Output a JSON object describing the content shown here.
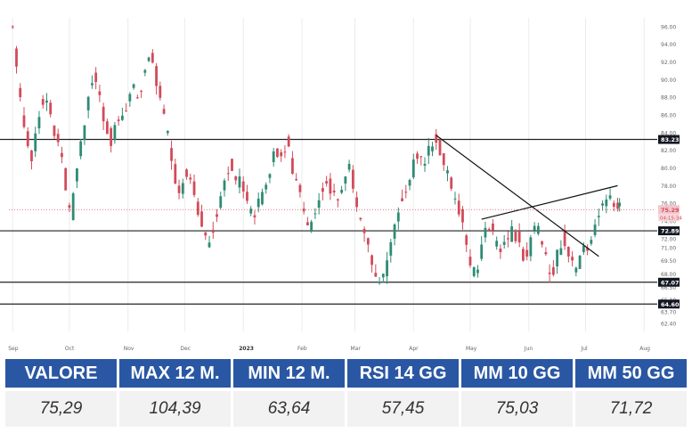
{
  "chart_data": {
    "type": "candlestick",
    "ylim": [
      61.5,
      97
    ],
    "y_ticks": [
      "96.00",
      "94.00",
      "92.00",
      "90.00",
      "88.00",
      "86.00",
      "84.00",
      "82.00",
      "80.00",
      "78.00",
      "76.00",
      "74.00",
      "72.00",
      "71.00",
      "69.50",
      "68.00",
      "66.50",
      "65.10",
      "63.70",
      "62.40"
    ],
    "x_ticks": [
      {
        "label": "Sep",
        "day": 0
      },
      {
        "label": "Oct",
        "day": 30
      },
      {
        "label": "Nov",
        "day": 61
      },
      {
        "label": "Dec",
        "day": 91
      },
      {
        "label": "2023",
        "day": 122
      },
      {
        "label": "Feb",
        "day": 153
      },
      {
        "label": "Mar",
        "day": 181
      },
      {
        "label": "Apr",
        "day": 212
      },
      {
        "label": "May",
        "day": 242
      },
      {
        "label": "Jun",
        "day": 273
      },
      {
        "label": "Jul",
        "day": 303
      },
      {
        "label": "Aug",
        "day": 334
      }
    ],
    "x_range": [
      -2,
      340
    ],
    "horizontal_levels": [
      {
        "value": 83.23,
        "label": "83.23"
      },
      {
        "value": 72.89,
        "label": "72.89"
      },
      {
        "value": 67.07,
        "label": "67.07"
      },
      {
        "value": 64.6,
        "label": "64.60"
      }
    ],
    "current_price": {
      "value": 75.29,
      "label": "75.29",
      "sublabel": "04:15:34"
    },
    "trendlines": [
      {
        "from": [
          224,
          83.7
        ],
        "to": [
          310,
          70.0
        ]
      },
      {
        "from": [
          248,
          74.2
        ],
        "to": [
          320,
          78.0
        ]
      }
    ],
    "close_series": [
      {
        "day": 0,
        "close": 96.0
      },
      {
        "day": 3,
        "close": 89.0
      },
      {
        "day": 7,
        "close": 84.0
      },
      {
        "day": 10,
        "close": 81.0
      },
      {
        "day": 14,
        "close": 86.5
      },
      {
        "day": 18,
        "close": 88.0
      },
      {
        "day": 22,
        "close": 84.0
      },
      {
        "day": 26,
        "close": 82.0
      },
      {
        "day": 29,
        "close": 76.0
      },
      {
        "day": 31,
        "close": 75.0
      },
      {
        "day": 34,
        "close": 80.0
      },
      {
        "day": 37,
        "close": 84.0
      },
      {
        "day": 40,
        "close": 88.0
      },
      {
        "day": 43,
        "close": 90.5
      },
      {
        "day": 46,
        "close": 88.0
      },
      {
        "day": 49,
        "close": 85.0
      },
      {
        "day": 52,
        "close": 83.0
      },
      {
        "day": 55,
        "close": 85.0
      },
      {
        "day": 58,
        "close": 86.0
      },
      {
        "day": 61,
        "close": 87.5
      },
      {
        "day": 64,
        "close": 89.0
      },
      {
        "day": 67,
        "close": 88.0
      },
      {
        "day": 70,
        "close": 91.0
      },
      {
        "day": 73,
        "close": 93.0
      },
      {
        "day": 76,
        "close": 90.0
      },
      {
        "day": 79,
        "close": 87.0
      },
      {
        "day": 82,
        "close": 84.0
      },
      {
        "day": 85,
        "close": 80.0
      },
      {
        "day": 88,
        "close": 77.0
      },
      {
        "day": 91,
        "close": 80.0
      },
      {
        "day": 94,
        "close": 79.0
      },
      {
        "day": 97,
        "close": 76.0
      },
      {
        "day": 100,
        "close": 74.0
      },
      {
        "day": 103,
        "close": 71.0
      },
      {
        "day": 106,
        "close": 73.0
      },
      {
        "day": 109,
        "close": 76.0
      },
      {
        "day": 112,
        "close": 79.0
      },
      {
        "day": 115,
        "close": 80.5
      },
      {
        "day": 118,
        "close": 79.0
      },
      {
        "day": 121,
        "close": 78.0
      },
      {
        "day": 124,
        "close": 76.0
      },
      {
        "day": 127,
        "close": 74.0
      },
      {
        "day": 130,
        "close": 76.0
      },
      {
        "day": 133,
        "close": 78.0
      },
      {
        "day": 136,
        "close": 80.0
      },
      {
        "day": 139,
        "close": 82.0
      },
      {
        "day": 142,
        "close": 81.0
      },
      {
        "day": 145,
        "close": 82.5
      },
      {
        "day": 148,
        "close": 80.0
      },
      {
        "day": 151,
        "close": 78.0
      },
      {
        "day": 154,
        "close": 75.0
      },
      {
        "day": 157,
        "close": 73.0
      },
      {
        "day": 160,
        "close": 75.0
      },
      {
        "day": 163,
        "close": 77.0
      },
      {
        "day": 166,
        "close": 79.0
      },
      {
        "day": 169,
        "close": 77.0
      },
      {
        "day": 172,
        "close": 76.0
      },
      {
        "day": 175,
        "close": 78.0
      },
      {
        "day": 178,
        "close": 80.0
      },
      {
        "day": 181,
        "close": 77.0
      },
      {
        "day": 184,
        "close": 74.0
      },
      {
        "day": 187,
        "close": 72.0
      },
      {
        "day": 190,
        "close": 69.0
      },
      {
        "day": 193,
        "close": 67.0
      },
      {
        "day": 196,
        "close": 67.5
      },
      {
        "day": 199,
        "close": 70.0
      },
      {
        "day": 202,
        "close": 73.0
      },
      {
        "day": 205,
        "close": 76.0
      },
      {
        "day": 208,
        "close": 78.0
      },
      {
        "day": 211,
        "close": 80.0
      },
      {
        "day": 214,
        "close": 81.0
      },
      {
        "day": 217,
        "close": 80.5
      },
      {
        "day": 220,
        "close": 82.0
      },
      {
        "day": 223,
        "close": 83.5
      },
      {
        "day": 226,
        "close": 82.0
      },
      {
        "day": 229,
        "close": 80.0
      },
      {
        "day": 232,
        "close": 77.0
      },
      {
        "day": 235,
        "close": 76.0
      },
      {
        "day": 238,
        "close": 74.0
      },
      {
        "day": 241,
        "close": 70.0
      },
      {
        "day": 244,
        "close": 68.0
      },
      {
        "day": 246,
        "close": 69.0
      },
      {
        "day": 249,
        "close": 72.0
      },
      {
        "day": 252,
        "close": 73.5
      },
      {
        "day": 255,
        "close": 72.0
      },
      {
        "day": 258,
        "close": 70.5
      },
      {
        "day": 261,
        "close": 71.5
      },
      {
        "day": 264,
        "close": 73.0
      },
      {
        "day": 267,
        "close": 72.0
      },
      {
        "day": 270,
        "close": 70.0
      },
      {
        "day": 273,
        "close": 71.0
      },
      {
        "day": 276,
        "close": 74.0
      },
      {
        "day": 279,
        "close": 72.0
      },
      {
        "day": 282,
        "close": 69.5
      },
      {
        "day": 285,
        "close": 68.0
      },
      {
        "day": 288,
        "close": 70.0
      },
      {
        "day": 291,
        "close": 72.5
      },
      {
        "day": 294,
        "close": 70.0
      },
      {
        "day": 297,
        "close": 68.5
      },
      {
        "day": 300,
        "close": 69.5
      },
      {
        "day": 303,
        "close": 71.0
      },
      {
        "day": 306,
        "close": 72.0
      },
      {
        "day": 309,
        "close": 74.0
      },
      {
        "day": 312,
        "close": 76.0
      },
      {
        "day": 315,
        "close": 77.0
      },
      {
        "day": 317,
        "close": 75.5
      },
      {
        "day": 319,
        "close": 76.0
      },
      {
        "day": 321,
        "close": 75.29
      }
    ],
    "colors": {
      "up": "#2e8b74",
      "down": "#d24b5a",
      "level_line": "#222222",
      "trendline": "#111111"
    }
  },
  "stats": [
    {
      "label": "VALORE",
      "value": "75,29"
    },
    {
      "label": "MAX 12 M.",
      "value": "104,39"
    },
    {
      "label": "MIN 12 M.",
      "value": "63,64"
    },
    {
      "label": "RSI 14 GG",
      "value": "57,45"
    },
    {
      "label": "MM 10 GG",
      "value": "75,03"
    },
    {
      "label": "MM 50 GG",
      "value": "71,72"
    }
  ]
}
